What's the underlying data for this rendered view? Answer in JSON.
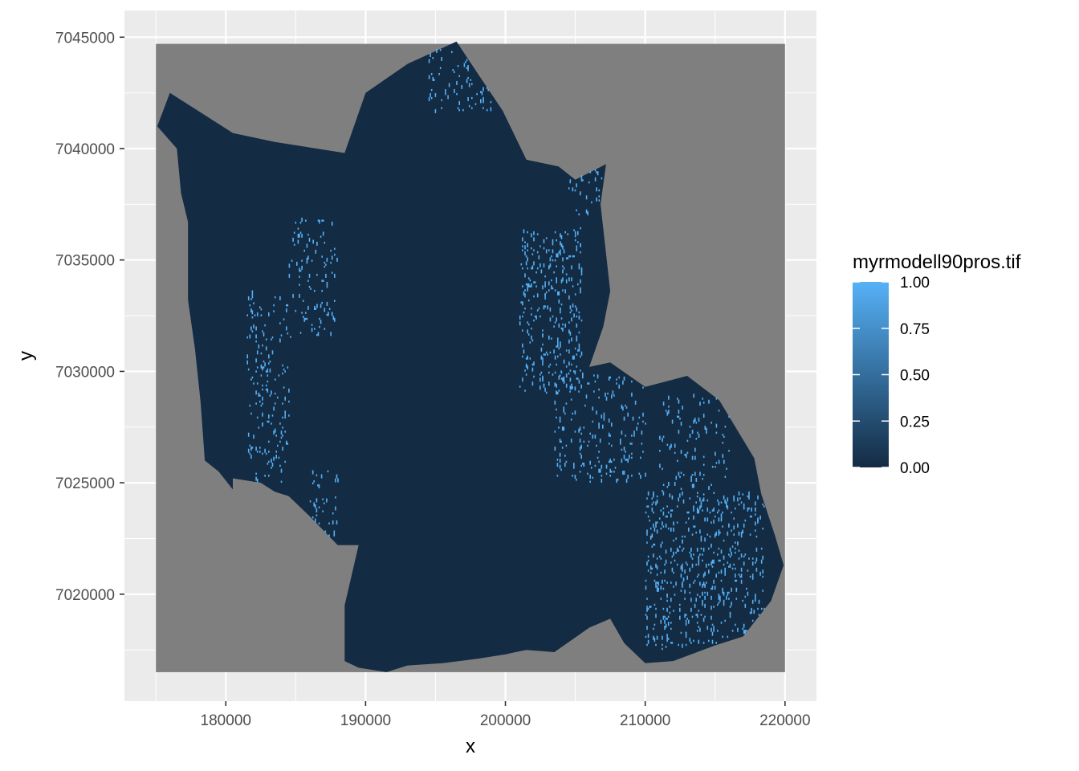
{
  "chart_data": {
    "type": "heatmap",
    "title": "",
    "xlabel": "x",
    "ylabel": "y",
    "xlim": [
      172750,
      222250
    ],
    "ylim": [
      7015200,
      7046200
    ],
    "x_ticks": [
      180000,
      190000,
      200000,
      210000,
      220000
    ],
    "x_tick_labels": [
      "180000",
      "190000",
      "200000",
      "210000",
      "220000"
    ],
    "y_ticks": [
      7020000,
      7025000,
      7030000,
      7035000,
      7040000,
      7045000
    ],
    "y_tick_labels": [
      "7020000",
      "7025000",
      "7030000",
      "7035000",
      "7040000",
      "7045000"
    ],
    "raster_extent": {
      "xmin": 175000,
      "xmax": 220000,
      "ymin": 7016500,
      "ymax": 7044700
    },
    "na_color": "#7f7f7f",
    "panel_background": "#ebebeb",
    "grid": true,
    "value_range": [
      0,
      1
    ],
    "color_low": "#132b43",
    "color_high": "#56b1f7",
    "region_value": 0,
    "region_outline": [
      [
        175100,
        7041000
      ],
      [
        176000,
        7042500
      ],
      [
        178000,
        7041700
      ],
      [
        180500,
        7040700
      ],
      [
        183500,
        7040300
      ],
      [
        188500,
        7039800
      ],
      [
        190000,
        7042500
      ],
      [
        193000,
        7043800
      ],
      [
        196500,
        7044800
      ],
      [
        198200,
        7043200
      ],
      [
        199800,
        7041700
      ],
      [
        201500,
        7039500
      ],
      [
        203800,
        7039200
      ],
      [
        205000,
        7038600
      ],
      [
        207200,
        7039300
      ],
      [
        206800,
        7037500
      ],
      [
        207500,
        7033600
      ],
      [
        207000,
        7032000
      ],
      [
        206000,
        7030200
      ],
      [
        207500,
        7030400
      ],
      [
        210000,
        7029300
      ],
      [
        213000,
        7029800
      ],
      [
        215300,
        7028700
      ],
      [
        217800,
        7026100
      ],
      [
        218300,
        7024500
      ],
      [
        219300,
        7022600
      ],
      [
        219900,
        7021300
      ],
      [
        219000,
        7019700
      ],
      [
        217000,
        7018100
      ],
      [
        215000,
        7017700
      ],
      [
        212000,
        7017000
      ],
      [
        210000,
        7016900
      ],
      [
        208500,
        7017800
      ],
      [
        207500,
        7018900
      ],
      [
        206000,
        7018500
      ],
      [
        203500,
        7017400
      ],
      [
        201500,
        7017500
      ],
      [
        200000,
        7017300
      ],
      [
        198000,
        7017100
      ],
      [
        195500,
        7016900
      ],
      [
        193000,
        7016800
      ],
      [
        191500,
        7016500
      ],
      [
        189500,
        7016700
      ],
      [
        188500,
        7017000
      ],
      [
        188500,
        7019500
      ],
      [
        189500,
        7022200
      ],
      [
        188000,
        7022200
      ],
      [
        186000,
        7023500
      ],
      [
        184500,
        7024400
      ],
      [
        183500,
        7024600
      ],
      [
        182500,
        7025000
      ],
      [
        180500,
        7025200
      ],
      [
        180500,
        7024700
      ],
      [
        179500,
        7025500
      ],
      [
        178500,
        7026000
      ],
      [
        178200,
        7028600
      ],
      [
        177800,
        7031000
      ],
      [
        177300,
        7033200
      ],
      [
        177300,
        7036700
      ],
      [
        176800,
        7038000
      ],
      [
        176500,
        7040000
      ],
      [
        175100,
        7041000
      ]
    ],
    "high_value_clusters": [
      {
        "x": [
          181500,
          184500
        ],
        "y": [
          7025000,
          7033500
        ],
        "value": 1,
        "density": 0.05
      },
      {
        "x": [
          184500,
          188000
        ],
        "y": [
          7031500,
          7036800
        ],
        "value": 1,
        "density": 0.04
      },
      {
        "x": [
          186000,
          188000
        ],
        "y": [
          7022500,
          7025500
        ],
        "value": 1,
        "density": 0.05
      },
      {
        "x": [
          194500,
          199000
        ],
        "y": [
          7041500,
          7044800
        ],
        "value": 1,
        "density": 0.05
      },
      {
        "x": [
          201000,
          205500
        ],
        "y": [
          7029000,
          7036500
        ],
        "value": 1,
        "density": 0.07
      },
      {
        "x": [
          204500,
          207200
        ],
        "y": [
          7037000,
          7039300
        ],
        "value": 1,
        "density": 0.04
      },
      {
        "x": [
          203500,
          210000
        ],
        "y": [
          7025000,
          7030000
        ],
        "value": 1,
        "density": 0.05
      },
      {
        "x": [
          210000,
          218500
        ],
        "y": [
          7017500,
          7024500
        ],
        "value": 1,
        "density": 0.07
      },
      {
        "x": [
          211000,
          216000
        ],
        "y": [
          7024500,
          7029000
        ],
        "value": 1,
        "density": 0.04
      }
    ],
    "legend": {
      "title": "myrmodell90pros.tif",
      "breaks": [
        1.0,
        0.75,
        0.5,
        0.25,
        0.0
      ],
      "labels": [
        "1.00",
        "0.75",
        "0.50",
        "0.25",
        "0.00"
      ],
      "placement": "right"
    }
  }
}
